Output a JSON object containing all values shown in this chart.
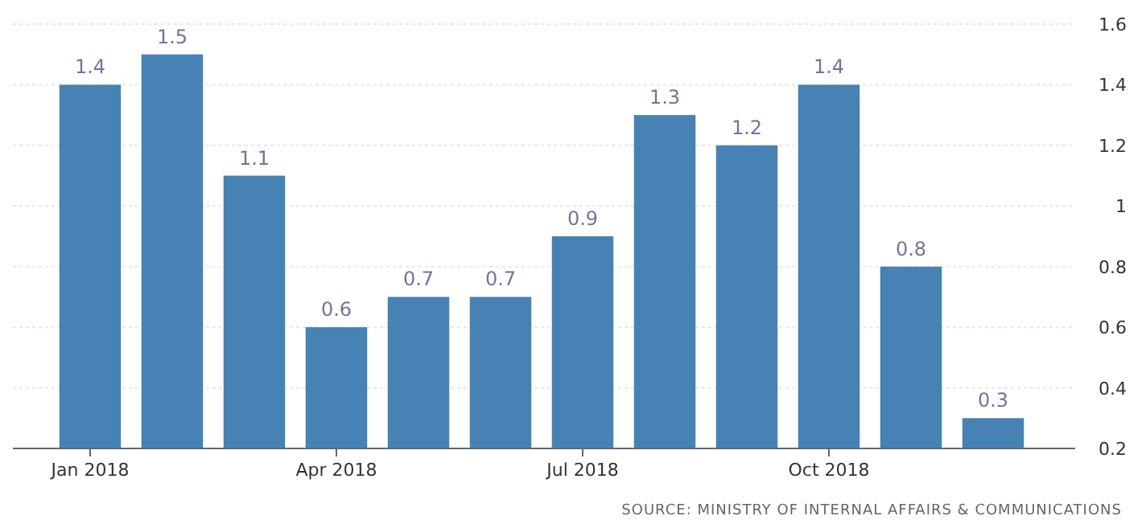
{
  "chart_data": {
    "type": "bar",
    "categories": [
      "Jan 2018",
      null,
      null,
      "Apr 2018",
      null,
      null,
      "Jul 2018",
      null,
      null,
      "Oct 2018",
      null,
      null
    ],
    "values": [
      1.4,
      1.5,
      1.1,
      0.6,
      0.7,
      0.7,
      0.9,
      1.3,
      1.2,
      1.4,
      0.8,
      0.3
    ],
    "color": "#4682b4",
    "ylim": [
      0.2,
      1.6
    ],
    "yticks": [
      0.2,
      0.4,
      0.6,
      0.8,
      1,
      1.2,
      1.4,
      1.6
    ],
    "grid": "y",
    "data_labels": true,
    "annotations": [
      "SOURCE: MINISTRY OF INTERNAL AFFAIRS & COMMUNICATIONS"
    ]
  }
}
